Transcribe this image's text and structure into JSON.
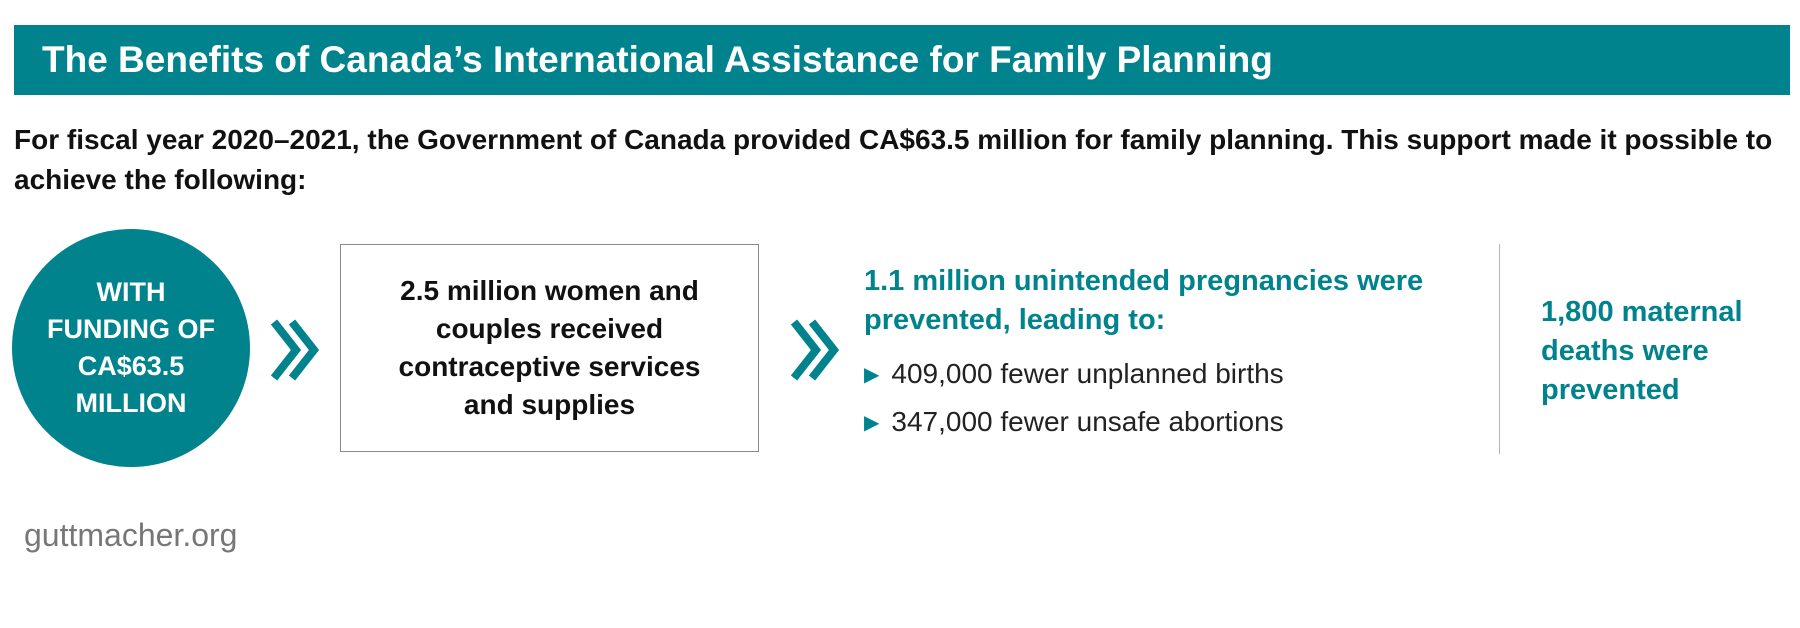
{
  "header": {
    "title": "The Benefits of Canada’s International Assistance for Family Planning"
  },
  "intro": {
    "text": "For fiscal year 2020–2021, the Government of Canada provided CA$63.5 million for family planning. This support made it possible to achieve the following:"
  },
  "funding_circle": {
    "text": "WITH FUNDING OF CA$63.5 MILLION"
  },
  "services_box": {
    "text": "2.5 million women and couples received contraceptive services and supplies"
  },
  "pregnancies": {
    "heading": "1.1 million unintended pregnancies were prevented, leading to:",
    "bullets": [
      "409,000 fewer unplanned births",
      "347,000 fewer unsafe abortions"
    ]
  },
  "maternal": {
    "text": "1,800 maternal deaths were prevented"
  },
  "footer": {
    "source": "guttmacher.org"
  },
  "icons": {
    "arrow": "double-chevron-right-icon",
    "bullet": "triangle-right-icon"
  },
  "colors": {
    "accent": "#00838d",
    "text": "#111111",
    "muted": "#777777"
  }
}
